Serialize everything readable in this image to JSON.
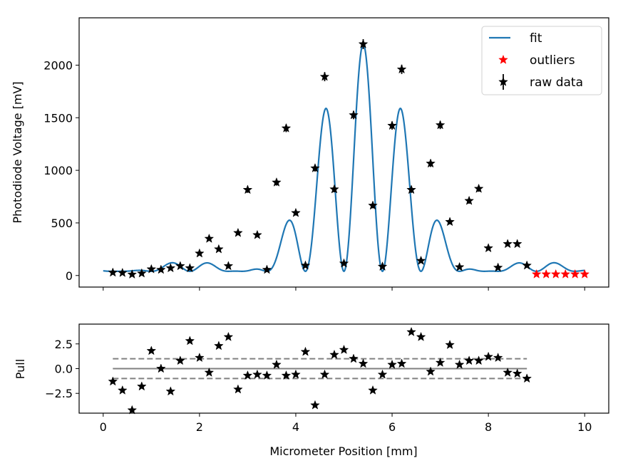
{
  "chart_data": [
    {
      "type": "scatter",
      "title": "",
      "xlabel": "",
      "ylabel": "Photodiode Voltage [mV]",
      "xlim": [
        -0.5,
        10.5
      ],
      "ylim": [
        -110,
        2450
      ],
      "xticks": [
        0,
        2,
        4,
        6,
        8,
        10
      ],
      "xtick_labels_visible": false,
      "yticks": [
        0,
        500,
        1000,
        1500,
        2000
      ],
      "ytick_labels": [
        "0",
        "500",
        "1000",
        "1500",
        "2000"
      ],
      "grid": false,
      "legend_position": "top-right",
      "legend": {
        "fit_label": "fit",
        "outliers_label": "outliers",
        "raw_label": "raw data"
      },
      "series": [
        {
          "name": "raw data",
          "kind": "errorbar-star",
          "color": "#000000",
          "x": [
            0.2,
            0.4,
            0.6,
            0.8,
            1.0,
            1.2,
            1.4,
            1.6,
            1.8,
            2.0,
            2.2,
            2.4,
            2.6,
            2.8,
            3.0,
            3.2,
            3.4,
            3.6,
            3.8,
            4.0,
            4.2,
            4.4,
            4.6,
            4.8,
            5.0,
            5.2,
            5.4,
            5.6,
            5.8,
            6.0,
            6.2,
            6.4,
            6.6,
            6.8,
            7.0,
            7.2,
            7.4,
            7.6,
            7.8,
            8.0,
            8.2,
            8.4,
            8.6,
            8.8
          ],
          "y": [
            28,
            25,
            10,
            20,
            60,
            55,
            70,
            90,
            70,
            210,
            350,
            250,
            90,
            405,
            815,
            385,
            55,
            885,
            1400,
            595,
            95,
            1020,
            1890,
            820,
            115,
            1525,
            2200,
            665,
            85,
            1425,
            1960,
            815,
            140,
            1065,
            1430,
            510,
            80,
            710,
            825,
            260,
            75,
            300,
            300,
            95
          ],
          "yerr": [
            5,
            5,
            3,
            4,
            8,
            8,
            9,
            10,
            9,
            15,
            19,
            16,
            10,
            20,
            29,
            20,
            8,
            30,
            37,
            24,
            10,
            32,
            43,
            29,
            11,
            39,
            47,
            26,
            9,
            38,
            44,
            29,
            12,
            33,
            38,
            23,
            9,
            27,
            29,
            16,
            9,
            17,
            17,
            10
          ]
        },
        {
          "name": "outliers",
          "kind": "star",
          "color": "#ff0000",
          "x": [
            9.0,
            9.2,
            9.4,
            9.6,
            9.8,
            10.0
          ],
          "y": [
            12,
            12,
            12,
            12,
            12,
            12
          ]
        },
        {
          "name": "fit",
          "kind": "line",
          "color": "#1f77b4",
          "model": {
            "x_start": 0,
            "x_end": 10,
            "amplitude": 2160,
            "center": 5.4,
            "envelope_scale": 0.8,
            "fringe_period": 0.8,
            "baseline": 40
          }
        }
      ]
    },
    {
      "type": "scatter",
      "title": "",
      "xlabel": "Micrometer Position [mm]",
      "ylabel": "Pull",
      "xlim": [
        -0.5,
        10.5
      ],
      "ylim": [
        -4.5,
        4.5
      ],
      "xticks": [
        0,
        2,
        4,
        6,
        8,
        10
      ],
      "xtick_labels": [
        "0",
        "2",
        "4",
        "6",
        "8",
        "10"
      ],
      "yticks": [
        2.5,
        0.0,
        -2.5
      ],
      "ytick_labels": [
        "2.5",
        "0.0",
        "−2.5"
      ],
      "grid": false,
      "reference_lines": [
        {
          "y": 1,
          "style": "dashed",
          "color": "#808080",
          "x_range": [
            0.2,
            8.8
          ]
        },
        {
          "y": 0,
          "style": "solid",
          "color": "#808080",
          "x_range": [
            0.2,
            8.8
          ]
        },
        {
          "y": -1,
          "style": "dashed",
          "color": "#808080",
          "x_range": [
            0.2,
            8.8
          ]
        }
      ],
      "series": [
        {
          "name": "pull",
          "kind": "star",
          "color": "#000000",
          "x": [
            0.2,
            0.4,
            0.6,
            0.8,
            1.0,
            1.2,
            1.4,
            1.6,
            1.8,
            2.0,
            2.2,
            2.4,
            2.6,
            2.8,
            3.0,
            3.2,
            3.4,
            3.6,
            3.8,
            4.0,
            4.2,
            4.4,
            4.6,
            4.8,
            5.0,
            5.2,
            5.4,
            5.6,
            5.8,
            6.0,
            6.2,
            6.4,
            6.6,
            6.8,
            7.0,
            7.2,
            7.4,
            7.6,
            7.8,
            8.0,
            8.2,
            8.4,
            8.6,
            8.8
          ],
          "y": [
            -1.3,
            -2.2,
            -4.2,
            -1.8,
            1.8,
            0.0,
            -2.3,
            0.8,
            2.8,
            1.1,
            -0.4,
            2.3,
            3.2,
            -2.1,
            -0.7,
            -0.6,
            -0.7,
            0.4,
            -0.7,
            -0.6,
            1.7,
            -3.7,
            -0.6,
            1.4,
            1.9,
            1.0,
            0.5,
            -2.2,
            -0.6,
            0.4,
            0.5,
            3.7,
            3.2,
            -0.3,
            0.6,
            2.4,
            0.4,
            0.8,
            0.8,
            1.2,
            1.1,
            -0.4,
            -0.5,
            -1.0
          ]
        }
      ]
    }
  ]
}
